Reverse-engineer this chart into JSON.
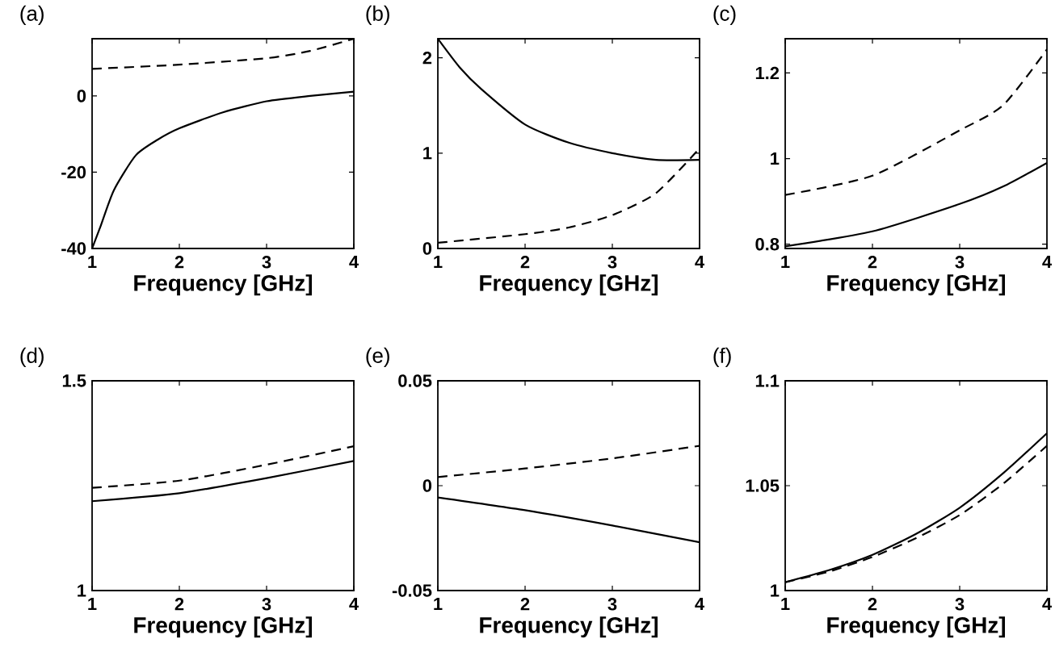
{
  "chart_data": [
    {
      "type": "line",
      "title": "(a)",
      "xlabel": "Frequency [GHz]",
      "xlim": [
        1,
        4
      ],
      "ylim": [
        -40,
        15
      ],
      "xticks": [
        1,
        2,
        3,
        4
      ],
      "yticks": [
        -40,
        -20,
        0
      ],
      "series": [
        {
          "color": "#000000",
          "line_style": "solid",
          "x": [
            1,
            1.1,
            1.25,
            1.5,
            1.75,
            2,
            2.5,
            3,
            3.5,
            4
          ],
          "values": [
            -40,
            -34,
            -24.7,
            -15.6,
            -11.5,
            -8.5,
            -4.3,
            -1.4,
            0,
            1.1
          ]
        },
        {
          "color": "#000000",
          "line_style": "dashed",
          "x": [
            1,
            2,
            3,
            3.5,
            4
          ],
          "values": [
            7.1,
            8.2,
            9.9,
            11.8,
            15
          ]
        }
      ]
    },
    {
      "type": "line",
      "title": "(b)",
      "xlabel": "Frequency [GHz]",
      "xlim": [
        1,
        4
      ],
      "ylim": [
        0,
        2.2
      ],
      "xticks": [
        1,
        2,
        3,
        4
      ],
      "yticks": [
        0,
        1,
        2
      ],
      "series": [
        {
          "color": "#000000",
          "line_style": "solid",
          "x": [
            1,
            1.25,
            1.5,
            2,
            2.5,
            3,
            3.5,
            4
          ],
          "values": [
            2.2,
            1.9,
            1.67,
            1.3,
            1.11,
            1.0,
            0.93,
            0.93
          ]
        },
        {
          "color": "#000000",
          "line_style": "dashed",
          "x": [
            1,
            2,
            2.5,
            3,
            3.5,
            4
          ],
          "values": [
            0.06,
            0.15,
            0.22,
            0.35,
            0.58,
            1.05
          ]
        }
      ]
    },
    {
      "type": "line",
      "title": "(c)",
      "xlabel": "Frequency [GHz]",
      "xlim": [
        1,
        4
      ],
      "ylim": [
        0.79,
        1.28
      ],
      "xticks": [
        1,
        2,
        3,
        4
      ],
      "yticks": [
        0.8,
        1,
        1.2
      ],
      "series": [
        {
          "color": "#000000",
          "line_style": "solid",
          "x": [
            1,
            2,
            3,
            3.5,
            4
          ],
          "values": [
            0.795,
            0.83,
            0.894,
            0.935,
            0.99
          ]
        },
        {
          "color": "#000000",
          "line_style": "dashed",
          "x": [
            1,
            2,
            3,
            3.5,
            4
          ],
          "values": [
            0.915,
            0.96,
            1.066,
            1.125,
            1.255
          ]
        }
      ]
    },
    {
      "type": "line",
      "title": "(d)",
      "xlabel": "Frequency [GHz]",
      "xlim": [
        1,
        4
      ],
      "ylim": [
        1,
        1.5
      ],
      "xticks": [
        1,
        2,
        3,
        4
      ],
      "yticks": [
        1,
        1.5
      ],
      "series": [
        {
          "color": "#000000",
          "line_style": "solid",
          "x": [
            1,
            2,
            3,
            4
          ],
          "values": [
            1.213,
            1.232,
            1.268,
            1.309
          ]
        },
        {
          "color": "#000000",
          "line_style": "dashed",
          "x": [
            1,
            2,
            3,
            4
          ],
          "values": [
            1.245,
            1.262,
            1.3,
            1.344
          ]
        }
      ]
    },
    {
      "type": "line",
      "title": "(e)",
      "xlabel": "Frequency [GHz]",
      "xlim": [
        1,
        4
      ],
      "ylim": [
        -0.05,
        0.05
      ],
      "xticks": [
        1,
        2,
        3,
        4
      ],
      "yticks": [
        -0.05,
        0,
        0.05
      ],
      "series": [
        {
          "color": "#000000",
          "line_style": "solid",
          "x": [
            1,
            2,
            3,
            4
          ],
          "values": [
            -0.0056,
            -0.0117,
            -0.019,
            -0.027
          ]
        },
        {
          "color": "#000000",
          "line_style": "dashed",
          "x": [
            1,
            2,
            3,
            4
          ],
          "values": [
            0.0041,
            0.0082,
            0.013,
            0.019
          ]
        }
      ]
    },
    {
      "type": "line",
      "title": "(f)",
      "xlabel": "Frequency [GHz]",
      "xlim": [
        1,
        4
      ],
      "ylim": [
        1,
        1.1
      ],
      "xticks": [
        1,
        2,
        3,
        4
      ],
      "yticks": [
        1,
        1.05,
        1.1
      ],
      "series": [
        {
          "color": "#000000",
          "line_style": "solid",
          "x": [
            1,
            1.5,
            2,
            2.5,
            3,
            3.5,
            4
          ],
          "values": [
            1.004,
            1.0097,
            1.017,
            1.027,
            1.0395,
            1.056,
            1.075
          ]
        },
        {
          "color": "#000000",
          "line_style": "dashed",
          "x": [
            1,
            1.5,
            2,
            2.5,
            3,
            3.5,
            4
          ],
          "values": [
            1.004,
            1.009,
            1.016,
            1.025,
            1.036,
            1.051,
            1.069
          ]
        }
      ]
    }
  ]
}
